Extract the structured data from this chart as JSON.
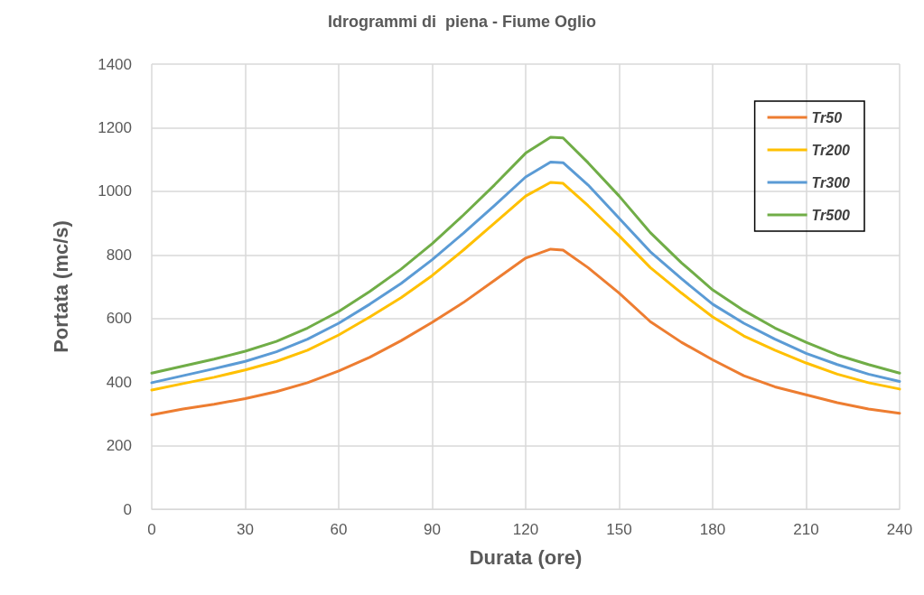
{
  "chart_data": {
    "type": "line",
    "title": "Idrogrammi di  piena - Fiume Oglio",
    "xlabel": "Durata (ore)",
    "ylabel": "Portata (mc/s)",
    "x": [
      0,
      10,
      20,
      30,
      40,
      50,
      60,
      70,
      80,
      90,
      100,
      110,
      120,
      128,
      132,
      140,
      150,
      160,
      170,
      180,
      190,
      200,
      210,
      220,
      230,
      240
    ],
    "series": [
      {
        "name": "Tr50",
        "color": "#ed7d31",
        "values": [
          297,
          315,
          330,
          348,
          370,
          398,
          435,
          478,
          530,
          588,
          650,
          720,
          790,
          818,
          815,
          760,
          680,
          590,
          525,
          470,
          420,
          385,
          360,
          335,
          315,
          302
        ]
      },
      {
        "name": "Tr200",
        "color": "#ffc000",
        "values": [
          375,
          395,
          415,
          438,
          465,
          500,
          548,
          605,
          665,
          735,
          815,
          900,
          985,
          1028,
          1025,
          955,
          860,
          760,
          680,
          605,
          545,
          500,
          460,
          425,
          398,
          378
        ]
      },
      {
        "name": "Tr300",
        "color": "#5b9bd5",
        "values": [
          398,
          420,
          442,
          465,
          495,
          535,
          585,
          645,
          710,
          785,
          868,
          955,
          1045,
          1092,
          1090,
          1020,
          915,
          810,
          725,
          645,
          585,
          535,
          490,
          455,
          425,
          402
        ]
      },
      {
        "name": "Tr500",
        "color": "#70ad47",
        "values": [
          428,
          450,
          472,
          497,
          528,
          570,
          622,
          685,
          755,
          835,
          925,
          1020,
          1120,
          1170,
          1168,
          1090,
          985,
          870,
          775,
          690,
          625,
          570,
          525,
          485,
          455,
          428
        ]
      }
    ],
    "xlim": [
      0,
      240
    ],
    "xticks": [
      0,
      30,
      60,
      90,
      120,
      150,
      180,
      210,
      240
    ],
    "ylim": [
      0,
      1400
    ],
    "yticks": [
      0,
      200,
      400,
      600,
      800,
      1000,
      1200,
      1400
    ],
    "grid": true,
    "legend": "top right",
    "marker": "none",
    "line_style": "solid"
  }
}
